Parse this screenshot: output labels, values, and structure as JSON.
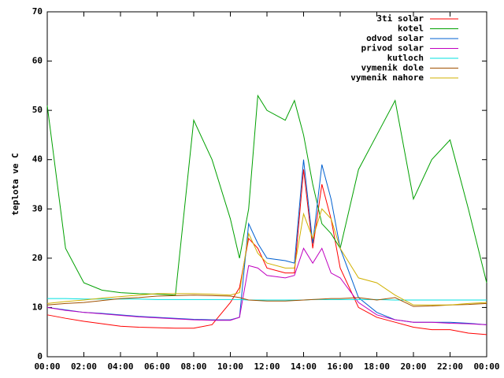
{
  "chart_data": {
    "type": "line",
    "y_label": "teplota ve C",
    "x": [
      0,
      1,
      2,
      3,
      4,
      5,
      6,
      7,
      8,
      9,
      10,
      10.5,
      11,
      11.5,
      12,
      13,
      13.5,
      14,
      14.5,
      15,
      15.5,
      16,
      17,
      18,
      19,
      20,
      21,
      22,
      23,
      24
    ],
    "xlim": [
      0,
      24
    ],
    "xticks": [
      {
        "value": 0,
        "label": "00:00"
      },
      {
        "value": 2,
        "label": "02:00"
      },
      {
        "value": 4,
        "label": "04:00"
      },
      {
        "value": 6,
        "label": "06:00"
      },
      {
        "value": 8,
        "label": "08:00"
      },
      {
        "value": 10,
        "label": "10:00"
      },
      {
        "value": 12,
        "label": "12:00"
      },
      {
        "value": 14,
        "label": "14:00"
      },
      {
        "value": 16,
        "label": "16:00"
      },
      {
        "value": 18,
        "label": "18:00"
      },
      {
        "value": 20,
        "label": "20:00"
      },
      {
        "value": 22,
        "label": "22:00"
      },
      {
        "value": 24,
        "label": "00:00"
      }
    ],
    "ylim": [
      0,
      70
    ],
    "yticks": [
      0,
      10,
      20,
      30,
      40,
      50,
      60,
      70
    ],
    "grid": false,
    "legend": "top-right",
    "series": [
      {
        "name": "3ti solar",
        "color": "#ff0000",
        "values": [
          8.5,
          7.8,
          7.2,
          6.7,
          6.2,
          6,
          5.9,
          5.8,
          5.8,
          6.5,
          11,
          14,
          24,
          22,
          18,
          17,
          17,
          38,
          22,
          35,
          28,
          18,
          10,
          8,
          7,
          6,
          5.5,
          5.5,
          4.8,
          4.5
        ]
      },
      {
        "name": "kotel",
        "color": "#00a000",
        "values": [
          51,
          22,
          15,
          13.5,
          13,
          12.8,
          12.7,
          12.5,
          48,
          40,
          28,
          20,
          30,
          53,
          50,
          48,
          52,
          45,
          35,
          27,
          25,
          22,
          38,
          45,
          52,
          32,
          40,
          44,
          30,
          15
        ]
      },
      {
        "name": "odvod solar",
        "color": "#0060d0",
        "values": [
          10,
          9.5,
          9,
          8.8,
          8.5,
          8.2,
          8,
          7.8,
          7.6,
          7.5,
          7.5,
          8,
          27,
          23,
          20,
          19.5,
          19,
          40,
          23,
          39,
          32,
          22,
          12,
          9,
          7.5,
          7,
          7,
          7,
          6.8,
          6.5
        ]
      },
      {
        "name": "privod solar",
        "color": "#c000c0",
        "values": [
          10,
          9.4,
          9,
          8.7,
          8.4,
          8.1,
          7.9,
          7.7,
          7.5,
          7.4,
          7.4,
          8,
          18.5,
          18,
          16.5,
          16,
          16.5,
          22,
          19,
          22,
          17,
          16,
          11,
          8.5,
          7.5,
          7,
          7,
          6.8,
          6.7,
          6.5
        ]
      },
      {
        "name": "kutloch",
        "color": "#00e0e0",
        "values": [
          11.8,
          11.8,
          11.7,
          11.7,
          11.7,
          11.7,
          11.6,
          11.6,
          11.6,
          11.6,
          11.6,
          11.6,
          11.5,
          11.5,
          11.5,
          11.5,
          11.5,
          11.5,
          11.6,
          11.6,
          11.6,
          11.6,
          11.6,
          11.6,
          11.5,
          11.5,
          11.5,
          11.5,
          11.5,
          11.5
        ]
      },
      {
        "name": "vymenik dole",
        "color": "#a05000",
        "values": [
          10.5,
          10.8,
          11,
          11.4,
          11.8,
          12,
          12.3,
          12.4,
          12.5,
          12.4,
          12.3,
          12,
          11.5,
          11.4,
          11.3,
          11.3,
          11.4,
          11.5,
          11.6,
          11.7,
          11.8,
          11.8,
          12,
          11.5,
          12,
          10.2,
          10.3,
          10.5,
          10.6,
          10.8
        ]
      },
      {
        "name": "vymenik nahore",
        "color": "#d0b000",
        "values": [
          10.8,
          11.2,
          11.5,
          11.9,
          12.2,
          12.5,
          12.8,
          12.8,
          12.8,
          12.7,
          12.5,
          13,
          25,
          21,
          19,
          18,
          18,
          29,
          24,
          30,
          28,
          22,
          16,
          15,
          12.5,
          10.5,
          10.5,
          10.5,
          10.8,
          11
        ]
      }
    ]
  }
}
